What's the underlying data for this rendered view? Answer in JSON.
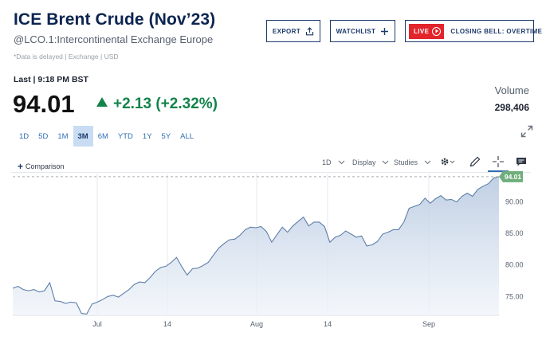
{
  "header": {
    "title": "ICE Brent Crude (Nov’23)",
    "symbol_line": "@LCO.1:Intercontinental Exchange Europe",
    "delay_note": "*Data is delayed | Exchange | USD"
  },
  "actions": {
    "export": "EXPORT",
    "watchlist": "WATCHLIST",
    "live_badge": "LIVE",
    "closing_bell": "CLOSING BELL: OVERTIME"
  },
  "quote": {
    "last_label": "Last | 9:18 PM BST",
    "price": "94.01",
    "change": "+2.13 (+2.32%)",
    "volume_label": "Volume",
    "volume_value": "298,406"
  },
  "colors": {
    "accent": "#2f6db3",
    "navy": "#0c2450",
    "positive": "#13834b",
    "live": "#e2252b",
    "line": "#5d7ea8",
    "last_tag": "#6fae7c"
  },
  "ranges": [
    {
      "label": "1D",
      "active": false
    },
    {
      "label": "5D",
      "active": false
    },
    {
      "label": "1M",
      "active": false
    },
    {
      "label": "3M",
      "active": true
    },
    {
      "label": "6M",
      "active": false
    },
    {
      "label": "YTD",
      "active": false
    },
    {
      "label": "1Y",
      "active": false
    },
    {
      "label": "5Y",
      "active": false
    },
    {
      "label": "ALL",
      "active": false
    }
  ],
  "toolbar": {
    "comparison": "Comparison",
    "interval": "1D",
    "display": "Display",
    "studies": "Studies",
    "icons": [
      "settings-icon",
      "draw-pencil-icon",
      "crosshair-icon",
      "comment-icon",
      "expand-icon"
    ]
  },
  "chart_data": {
    "type": "area",
    "ylim": [
      72,
      94.5
    ],
    "y_ticks": [
      "75.00",
      "80.00",
      "85.00",
      "90.00"
    ],
    "x_ticks": [
      "Jul",
      "14",
      "Aug",
      "14",
      "Sep"
    ],
    "last_label": "94.01",
    "last_value": 94.01,
    "grid": true,
    "y_axis_position": "right",
    "values": [
      76.3,
      76.6,
      76.1,
      75.9,
      76.1,
      75.7,
      75.9,
      77.2,
      74.3,
      74.2,
      73.9,
      74.1,
      74.0,
      72.3,
      72.2,
      73.8,
      74.1,
      74.5,
      75.0,
      75.2,
      74.9,
      75.5,
      76.1,
      76.9,
      77.3,
      77.2,
      78.0,
      79.0,
      79.6,
      79.8,
      80.4,
      81.2,
      79.7,
      78.4,
      79.4,
      79.5,
      79.9,
      80.4,
      81.6,
      82.7,
      83.4,
      84.0,
      84.1,
      84.7,
      85.6,
      86.0,
      85.9,
      86.1,
      85.3,
      83.6,
      84.8,
      86.0,
      85.2,
      86.2,
      86.9,
      87.6,
      86.2,
      86.8,
      86.8,
      86.1,
      83.6,
      84.4,
      84.7,
      85.4,
      84.9,
      84.4,
      84.6,
      83.0,
      83.2,
      83.7,
      84.9,
      85.2,
      85.6,
      85.6,
      86.8,
      89.0,
      89.3,
      89.6,
      90.6,
      89.8,
      90.5,
      91.0,
      90.3,
      90.4,
      90.0,
      90.9,
      91.4,
      90.9,
      92.0,
      92.5,
      92.9,
      93.8,
      94.01
    ]
  }
}
